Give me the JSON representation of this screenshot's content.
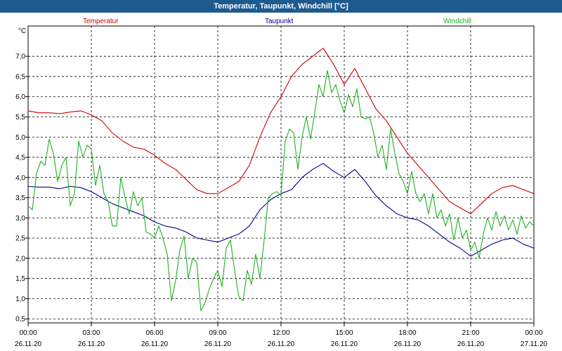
{
  "window": {
    "title": "Temperatur, Taupunkt, Windchill [°C]"
  },
  "chart_data": {
    "type": "line",
    "title": "Temperatur, Taupunkt, Windchill [°C]",
    "ylabel": "°C",
    "ylim": [
      0.4,
      7.75
    ],
    "xlim": [
      0,
      24
    ],
    "yticks": [
      "7,0",
      "6,5",
      "6,0",
      "5,5",
      "5,0",
      "4,5",
      "4,0",
      "3,5",
      "3,0",
      "2,5",
      "2,0",
      "1,5",
      "1,0",
      "0,5"
    ],
    "ytick_values": [
      7.0,
      6.5,
      6.0,
      5.5,
      5.0,
      4.5,
      4.0,
      3.5,
      3.0,
      2.5,
      2.0,
      1.5,
      1.0,
      0.5
    ],
    "xticks": [
      {
        "time": "00:00",
        "date": "26.11.20",
        "h": 0
      },
      {
        "time": "03:00",
        "date": "26.11.20",
        "h": 3
      },
      {
        "time": "06:00",
        "date": "26.11.20",
        "h": 6
      },
      {
        "time": "09:00",
        "date": "26.11.20",
        "h": 9
      },
      {
        "time": "12:00",
        "date": "26.11.20",
        "h": 12
      },
      {
        "time": "15:00",
        "date": "26.11.20",
        "h": 15
      },
      {
        "time": "18:00",
        "date": "26.11.20",
        "h": 18
      },
      {
        "time": "21:00",
        "date": "26.11.20",
        "h": 21
      },
      {
        "time": "00:00",
        "date": "27.11.20",
        "h": 24
      }
    ],
    "grid": true,
    "legend_placement": "top",
    "series": [
      {
        "name": "Temperatur",
        "color": "#cc0000",
        "x": [
          0,
          0.5,
          1,
          1.5,
          2,
          2.5,
          3,
          3.5,
          4,
          4.5,
          5,
          5.5,
          6,
          6.5,
          7,
          7.5,
          8,
          8.5,
          9,
          9.5,
          10,
          10.5,
          11,
          11.5,
          12,
          12.5,
          13,
          13.5,
          14,
          14.5,
          15,
          15.5,
          16,
          16.5,
          17,
          17.5,
          18,
          18.5,
          19,
          19.5,
          20,
          20.5,
          21,
          21.5,
          22,
          22.5,
          23,
          23.5,
          24
        ],
        "y": [
          5.65,
          5.6,
          5.6,
          5.58,
          5.62,
          5.65,
          5.55,
          5.4,
          5.1,
          4.9,
          4.75,
          4.7,
          4.55,
          4.35,
          4.2,
          3.95,
          3.7,
          3.6,
          3.6,
          3.75,
          3.9,
          4.3,
          5.0,
          5.6,
          6.0,
          6.5,
          6.8,
          7.0,
          7.2,
          6.8,
          6.3,
          6.7,
          6.2,
          5.7,
          5.4,
          5.0,
          4.6,
          4.3,
          4.0,
          3.7,
          3.4,
          3.25,
          3.1,
          3.35,
          3.6,
          3.75,
          3.8,
          3.7,
          3.6
        ]
      },
      {
        "name": "Taupunkt",
        "color": "#00008b",
        "x": [
          0,
          0.5,
          1,
          1.5,
          2,
          2.5,
          3,
          3.5,
          4,
          4.5,
          5,
          5.5,
          6,
          6.5,
          7,
          7.5,
          8,
          8.5,
          9,
          9.5,
          10,
          10.5,
          11,
          11.5,
          12,
          12.5,
          13,
          13.5,
          14,
          14.5,
          15,
          15.5,
          16,
          16.5,
          17,
          17.5,
          18,
          18.5,
          19,
          19.5,
          20,
          20.5,
          21,
          21.5,
          22,
          22.5,
          23,
          23.5,
          24
        ],
        "y": [
          3.78,
          3.76,
          3.76,
          3.72,
          3.78,
          3.75,
          3.65,
          3.5,
          3.35,
          3.25,
          3.15,
          3.05,
          2.9,
          2.8,
          2.75,
          2.65,
          2.5,
          2.45,
          2.4,
          2.5,
          2.6,
          2.8,
          3.2,
          3.45,
          3.6,
          3.7,
          4.0,
          4.2,
          4.35,
          4.15,
          4.0,
          4.2,
          3.9,
          3.55,
          3.3,
          3.1,
          3.0,
          2.95,
          2.8,
          2.6,
          2.4,
          2.25,
          2.05,
          2.2,
          2.35,
          2.45,
          2.5,
          2.35,
          2.25
        ]
      },
      {
        "name": "Windchill",
        "color": "#1fb01f",
        "x": [
          0,
          0.2,
          0.4,
          0.6,
          0.8,
          1.0,
          1.2,
          1.4,
          1.6,
          1.8,
          2.0,
          2.2,
          2.4,
          2.6,
          2.8,
          3.0,
          3.2,
          3.4,
          3.6,
          3.8,
          4.0,
          4.2,
          4.4,
          4.6,
          4.8,
          5.0,
          5.2,
          5.4,
          5.6,
          5.8,
          6.0,
          6.2,
          6.4,
          6.6,
          6.8,
          7.0,
          7.2,
          7.4,
          7.6,
          7.8,
          8.0,
          8.2,
          8.4,
          8.6,
          8.8,
          9.0,
          9.2,
          9.4,
          9.6,
          9.8,
          10.0,
          10.2,
          10.4,
          10.6,
          10.8,
          11.0,
          11.2,
          11.4,
          11.6,
          11.8,
          12.0,
          12.2,
          12.4,
          12.6,
          12.8,
          13.0,
          13.2,
          13.4,
          13.6,
          13.8,
          14.0,
          14.2,
          14.4,
          14.6,
          14.8,
          15.0,
          15.2,
          15.4,
          15.6,
          15.8,
          16.0,
          16.2,
          16.4,
          16.6,
          16.8,
          17.0,
          17.2,
          17.4,
          17.6,
          17.8,
          18.0,
          18.2,
          18.4,
          18.6,
          18.8,
          19.0,
          19.2,
          19.4,
          19.6,
          19.8,
          20.0,
          20.2,
          20.4,
          20.6,
          20.8,
          21.0,
          21.2,
          21.4,
          21.6,
          21.8,
          22.0,
          22.2,
          22.4,
          22.6,
          22.8,
          23.0,
          23.2,
          23.4,
          23.6,
          23.8,
          24.0
        ],
        "y": [
          3.3,
          3.2,
          4.1,
          4.4,
          4.3,
          4.95,
          4.6,
          3.9,
          4.3,
          4.5,
          3.3,
          3.6,
          4.9,
          4.5,
          4.8,
          4.7,
          3.8,
          4.3,
          3.6,
          3.4,
          2.8,
          2.8,
          4.0,
          3.5,
          3.1,
          3.65,
          3.3,
          3.5,
          2.65,
          2.6,
          2.5,
          2.8,
          2.5,
          2.1,
          0.95,
          1.45,
          2.2,
          2.55,
          1.5,
          2.0,
          1.9,
          0.7,
          0.9,
          1.25,
          1.5,
          1.7,
          1.3,
          2.25,
          2.45,
          1.7,
          1.05,
          0.95,
          1.7,
          1.35,
          2.1,
          1.5,
          2.45,
          3.5,
          3.6,
          3.65,
          3.55,
          4.9,
          5.2,
          5.1,
          4.2,
          5.0,
          5.5,
          4.95,
          5.6,
          6.3,
          6.0,
          6.65,
          6.1,
          6.3,
          5.9,
          5.6,
          6.05,
          5.75,
          6.2,
          5.5,
          5.45,
          5.5,
          5.1,
          4.5,
          4.8,
          4.2,
          5.2,
          4.6,
          4.1,
          3.9,
          3.6,
          4.15,
          3.6,
          3.4,
          3.6,
          3.1,
          3.6,
          3.0,
          3.2,
          2.8,
          3.1,
          2.45,
          3.0,
          2.5,
          2.7,
          2.2,
          2.4,
          2.0,
          2.6,
          3.0,
          2.7,
          3.15,
          2.8,
          3.05,
          2.7,
          2.95,
          2.6,
          3.05,
          2.75,
          2.9,
          2.8
        ]
      }
    ]
  }
}
